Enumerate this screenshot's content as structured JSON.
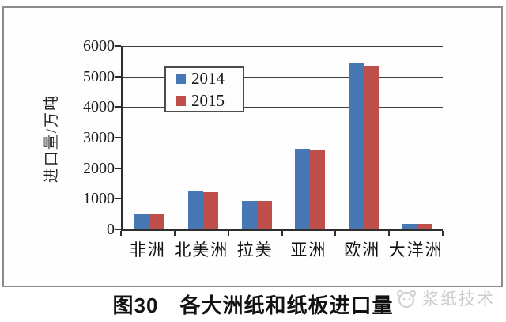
{
  "chart_data": {
    "type": "bar",
    "categories": [
      "非洲",
      "北美洲",
      "拉美",
      "亚洲",
      "欧洲",
      "大洋洲"
    ],
    "series": [
      {
        "name": "2014",
        "color": "#4878b4",
        "values": [
          520,
          1270,
          930,
          2650,
          5450,
          190
        ]
      },
      {
        "name": "2015",
        "color": "#bf4f4b",
        "values": [
          520,
          1210,
          920,
          2590,
          5320,
          190
        ]
      }
    ],
    "ylabel": "进口量/万吨",
    "xlabel": "",
    "title": "",
    "ylim": [
      0,
      6000
    ],
    "yticks": [
      0,
      1000,
      2000,
      3000,
      4000,
      5000,
      6000
    ],
    "grid": true,
    "legend_position": "inside top-left"
  },
  "caption": {
    "text": "图30　各大洲纸和纸板进口量"
  },
  "watermark": {
    "text": "浆纸技术"
  },
  "colors": {
    "bar_2014": "#4878b4",
    "bar_2015": "#bf4f4b",
    "axis": "#2d2d2d",
    "gridline": "#3e3e3e",
    "frame_border": "#8c8c8c",
    "watermark_gray": "#cccccc"
  }
}
